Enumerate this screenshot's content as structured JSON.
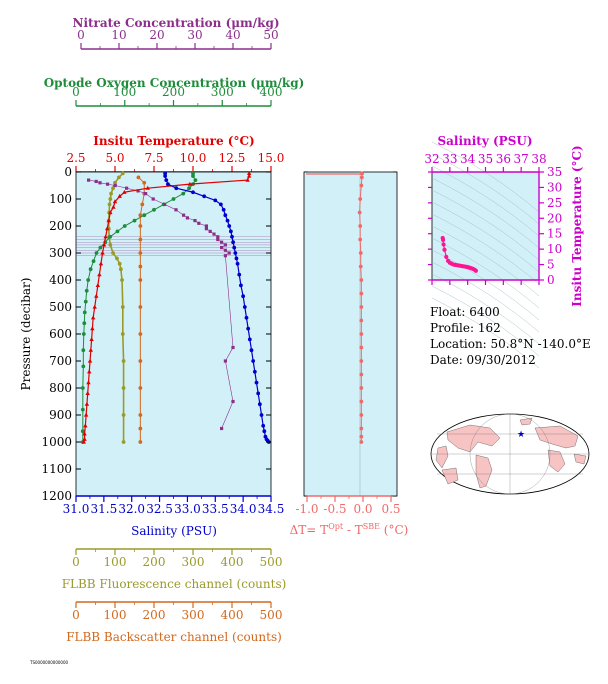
{
  "colors": {
    "nitrate": "#8B2F8B",
    "oxygen": "#1E8C3A",
    "temperature": "#E00000",
    "salinity": "#0000CC",
    "fluorescence": "#9A9A2A",
    "backscatter": "#D2691E",
    "delta": "#F06A6A",
    "ts": "#CC00CC",
    "panel_bg": "#D2F0F8",
    "map_land": "#F7C3C3"
  },
  "axes": {
    "nitrate": {
      "title": "Nitrate Concentration (μm/kg)",
      "ticks": [
        "0",
        "10",
        "20",
        "30",
        "40",
        "50"
      ]
    },
    "oxygen": {
      "title": "Optode Oxygen Concentration (μm/kg)",
      "ticks": [
        "0",
        "100",
        "200",
        "300",
        "400"
      ]
    },
    "temperature": {
      "title": "Insitu Temperature (°C)",
      "ticks": [
        "2.5",
        "5.0",
        "7.5",
        "10.0",
        "12.5",
        "15.0"
      ]
    },
    "pressure": {
      "title": "Pressure (decibar)",
      "ticks": [
        "0",
        "100",
        "200",
        "300",
        "400",
        "500",
        "600",
        "700",
        "800",
        "900",
        "1000",
        "1100",
        "1200"
      ]
    },
    "salinity": {
      "title": "Salinity (PSU)",
      "ticks": [
        "31.0",
        "31.5",
        "32.0",
        "32.5",
        "33.0",
        "33.5",
        "34.0",
        "34.5"
      ]
    },
    "fluorescence": {
      "title": "FLBB Fluorescence channel (counts)",
      "ticks": [
        "0",
        "100",
        "200",
        "300",
        "400",
        "500"
      ]
    },
    "backscatter": {
      "title": "FLBB Backscatter channel (counts)",
      "ticks": [
        "0",
        "100",
        "200",
        "300",
        "400",
        "500"
      ]
    },
    "delta": {
      "title_prefix": "ΔT= T",
      "sup1": "Opt",
      "mid": " - T",
      "sup2": "SBE",
      "suffix": " (°C)",
      "ticks": [
        "-1.0",
        "-0.5",
        "0.0",
        "0.5"
      ]
    },
    "ts_salinity": {
      "title": "Salinity (PSU)",
      "ticks": [
        "32",
        "33",
        "34",
        "35",
        "36",
        "37",
        "38"
      ]
    },
    "ts_temperature": {
      "title": "Insitu Temperature (°C)",
      "ticks": [
        "0",
        "5",
        "10",
        "15",
        "20",
        "25",
        "30",
        "35"
      ]
    }
  },
  "info": {
    "float": "Float:  6400",
    "profile": "Profile:  162",
    "location": "Location:  50.8°N  -140.0°E",
    "date": "Date:  09/30/2012"
  },
  "footer": "TS0000000000000",
  "chart_data": [
    {
      "type": "line",
      "title": "Insitu Temperature profile",
      "xlabel": "Insitu Temperature (°C)",
      "ylabel": "Pressure (decibar)",
      "xlim": [
        2.5,
        15.0
      ],
      "ylim": [
        1200,
        0
      ],
      "x": [
        13.6,
        13.6,
        13.5,
        9.8,
        7.1,
        5.6,
        5.3,
        5.0,
        4.9,
        4.7,
        4.6,
        4.5,
        4.4,
        4.3,
        4.2,
        4.1,
        4.0,
        3.9,
        3.8,
        3.7,
        3.6,
        3.55,
        3.5,
        3.45,
        3.4,
        3.35,
        3.3,
        3.25,
        3.2,
        3.15,
        3.1,
        3.05,
        3.05,
        3.0
      ],
      "y": [
        5,
        15,
        30,
        45,
        60,
        75,
        90,
        110,
        130,
        150,
        180,
        210,
        240,
        270,
        300,
        340,
        380,
        420,
        460,
        500,
        540,
        580,
        620,
        660,
        700,
        740,
        780,
        820,
        860,
        900,
        940,
        970,
        990,
        1000
      ],
      "series_name": "Insitu Temperature"
    },
    {
      "type": "line",
      "xlabel": "Salinity (PSU)",
      "ylim": [
        1200,
        0
      ],
      "xlim": [
        31.0,
        34.5
      ],
      "x": [
        32.6,
        32.6,
        32.62,
        32.65,
        32.8,
        33.1,
        33.3,
        33.5,
        33.6,
        33.65,
        33.68,
        33.72,
        33.75,
        33.78,
        33.8,
        33.82,
        33.84,
        33.86,
        33.88,
        33.9,
        33.93,
        33.96,
        34.0,
        34.03,
        34.06,
        34.09,
        34.12,
        34.15,
        34.18,
        34.21,
        34.24,
        34.27,
        34.3,
        34.33,
        34.36,
        34.38,
        34.4,
        34.42,
        34.44,
        34.46
      ],
      "y": [
        5,
        15,
        30,
        45,
        60,
        75,
        90,
        105,
        120,
        140,
        160,
        180,
        200,
        220,
        240,
        260,
        280,
        300,
        320,
        340,
        380,
        420,
        460,
        500,
        540,
        580,
        620,
        660,
        700,
        740,
        780,
        820,
        860,
        900,
        940,
        960,
        980,
        990,
        995,
        1000
      ],
      "series_name": "Salinity"
    },
    {
      "type": "line",
      "xlabel": "Optode Oxygen Concentration (μm/kg)",
      "ylim": [
        1200,
        0
      ],
      "xlim": [
        0,
        400
      ],
      "x": [
        240,
        240,
        245,
        240,
        232,
        220,
        200,
        180,
        160,
        140,
        120,
        100,
        85,
        70,
        60,
        50,
        42,
        36,
        30,
        25,
        22,
        20,
        18,
        17,
        16,
        15,
        15,
        14,
        14,
        14,
        14
      ],
      "y": [
        5,
        15,
        30,
        45,
        60,
        80,
        100,
        120,
        140,
        160,
        180,
        200,
        220,
        240,
        260,
        280,
        300,
        330,
        360,
        400,
        440,
        480,
        520,
        560,
        600,
        660,
        720,
        800,
        880,
        960,
        1000
      ],
      "series_name": "Optode Oxygen"
    },
    {
      "type": "scatter",
      "xlabel": "Nitrate Concentration (μm/kg)",
      "ylim": [
        1200,
        0
      ],
      "xlim": [
        0,
        50
      ],
      "x": [
        2,
        4,
        5,
        7,
        9,
        12,
        15,
        17,
        19,
        22,
        25,
        27,
        28,
        30,
        31,
        33,
        33,
        34,
        35,
        36,
        36,
        37,
        38,
        37,
        38,
        39,
        38,
        40,
        38,
        40,
        37
      ],
      "y": [
        30,
        35,
        40,
        45,
        50,
        60,
        70,
        80,
        100,
        120,
        140,
        160,
        170,
        180,
        190,
        200,
        210,
        220,
        230,
        240,
        250,
        260,
        270,
        280,
        290,
        300,
        310,
        650,
        700,
        850,
        950
      ],
      "series_name": "Nitrate"
    },
    {
      "type": "line",
      "xlabel": "FLBB Fluorescence channel (counts)",
      "ylim": [
        1200,
        0
      ],
      "xlim": [
        0,
        500
      ],
      "x": [
        120,
        110,
        100,
        95,
        90,
        88,
        86,
        85,
        84,
        84,
        85,
        88,
        95,
        105,
        112,
        115,
        118,
        120,
        120,
        122,
        122,
        122,
        122
      ],
      "y": [
        5,
        20,
        40,
        60,
        80,
        100,
        120,
        150,
        180,
        210,
        240,
        270,
        300,
        320,
        340,
        360,
        400,
        500,
        600,
        700,
        800,
        900,
        1000
      ],
      "series_name": "FLBB Fluorescence"
    },
    {
      "type": "line",
      "xlabel": "FLBB Backscatter channel (counts)",
      "ylim": [
        1200,
        0
      ],
      "xlim": [
        0,
        500
      ],
      "x": [
        160,
        175,
        175,
        170,
        165,
        165,
        165,
        165,
        165,
        165,
        165,
        165,
        165,
        165,
        165,
        165,
        165
      ],
      "y": [
        20,
        40,
        80,
        120,
        160,
        200,
        250,
        300,
        350,
        400,
        500,
        600,
        700,
        800,
        900,
        950,
        1000
      ],
      "series_name": "FLBB Backscatter"
    },
    {
      "type": "line",
      "xlabel": "ΔT (°C)",
      "ylim": [
        1200,
        0
      ],
      "xlim": [
        -1.0,
        0.5
      ],
      "x": [
        -0.02,
        -0.02,
        -0.03,
        -0.05,
        -0.06,
        -0.05,
        -0.05,
        -0.04,
        -0.04,
        -0.03,
        -0.03,
        -0.03,
        -0.03,
        -0.03,
        -0.03,
        -0.03,
        -0.03,
        -0.03,
        -0.03,
        -0.03,
        -0.03,
        -0.03,
        -0.03
      ],
      "y": [
        5,
        20,
        50,
        100,
        150,
        200,
        250,
        300,
        350,
        400,
        450,
        500,
        550,
        600,
        650,
        700,
        750,
        800,
        850,
        900,
        950,
        980,
        1000
      ],
      "series_name": "Delta T"
    },
    {
      "type": "scatter",
      "xlabel": "Salinity (PSU)",
      "ylabel": "Insitu Temperature (°C)",
      "xlim": [
        32,
        38
      ],
      "ylim": [
        0,
        35
      ],
      "x": [
        32.6,
        32.62,
        32.65,
        32.7,
        32.8,
        32.9,
        33.0,
        33.1,
        33.2,
        33.3,
        33.4,
        33.5,
        33.6,
        33.7,
        33.8,
        33.9,
        34.0,
        34.1,
        34.2,
        34.3,
        34.4,
        34.46
      ],
      "y": [
        13.6,
        13.0,
        11.5,
        9.8,
        7.5,
        6.2,
        5.6,
        5.3,
        5.0,
        4.9,
        4.8,
        4.7,
        4.6,
        4.5,
        4.4,
        4.3,
        4.2,
        4.0,
        3.8,
        3.6,
        3.3,
        3.0
      ],
      "series_name": "T-S"
    }
  ]
}
